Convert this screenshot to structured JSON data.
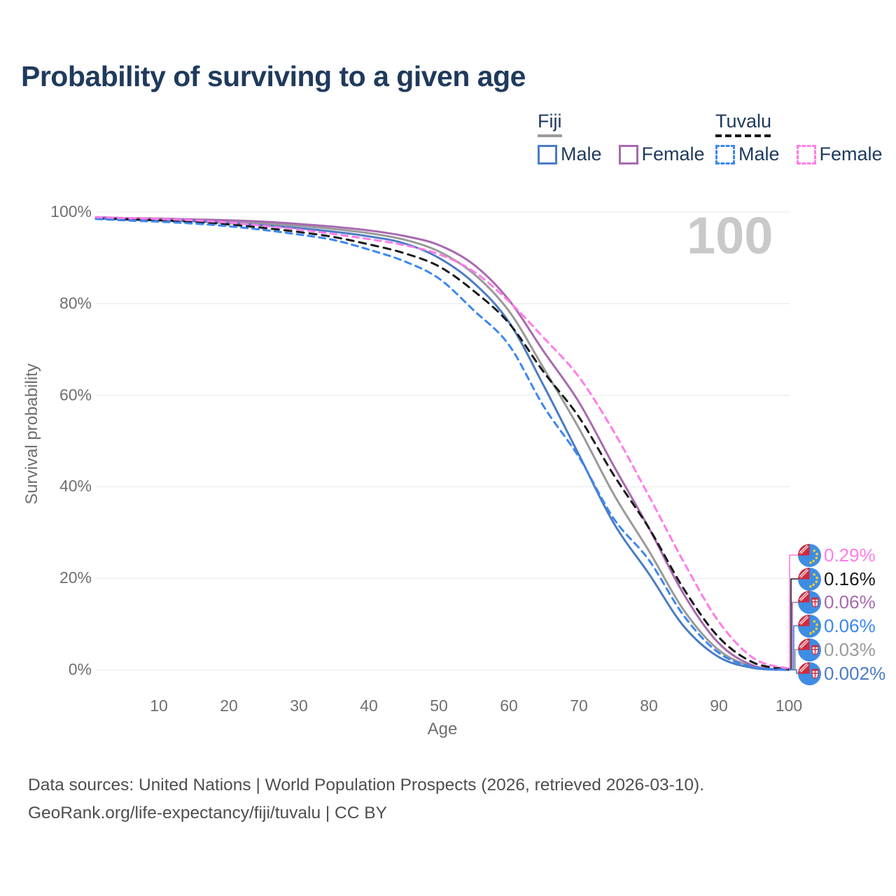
{
  "title": "Probability of surviving to a given age",
  "watermark": "100",
  "legend": {
    "fiji": {
      "label": "Fiji",
      "male": "Male",
      "female": "Female"
    },
    "tuvalu": {
      "label": "Tuvalu",
      "male": "Male",
      "female": "Female"
    }
  },
  "footer": {
    "line1": "Data sources: United Nations | World Population Prospects (2026, retrieved 2026-03-10).",
    "line2": "GeoRank.org/life-expectancy/fiji/tuvalu | CC BY"
  },
  "chart_data": {
    "type": "line",
    "title": "Probability of surviving to a given age",
    "xlabel": "Age",
    "ylabel": "Survival probability",
    "xlim": [
      1,
      100
    ],
    "ylim": [
      0,
      100
    ],
    "grid": "horizontal",
    "legend_position": "top-right",
    "x_ticks": [
      10,
      20,
      30,
      40,
      50,
      60,
      70,
      80,
      90,
      100
    ],
    "y_ticks": [
      {
        "value": 0,
        "label": "0%"
      },
      {
        "value": 20,
        "label": "20%"
      },
      {
        "value": 40,
        "label": "40%"
      },
      {
        "value": 60,
        "label": "60%"
      },
      {
        "value": 80,
        "label": "80%"
      },
      {
        "value": 100,
        "label": "100%"
      }
    ],
    "ages": [
      1,
      5,
      10,
      15,
      20,
      25,
      30,
      35,
      40,
      45,
      50,
      55,
      60,
      65,
      70,
      75,
      80,
      85,
      90,
      95,
      100
    ],
    "series": [
      {
        "id": "fiji_all",
        "name": "Fiji",
        "color": "#9a9a9a",
        "dash": "none",
        "values": [
          98.75,
          98.55,
          98.4,
          98.2,
          97.9,
          97.5,
          97.0,
          96.3,
          95.4,
          94.0,
          91.4,
          86.5,
          78.4,
          65.8,
          52.8,
          38.3,
          26.0,
          13.0,
          4.3,
          0.65,
          0.03
        ]
      },
      {
        "id": "fiji_female",
        "name": "Fiji Female",
        "color": "#a869b0",
        "dash": "none",
        "values": [
          98.9,
          98.7,
          98.6,
          98.4,
          98.2,
          97.9,
          97.4,
          96.8,
          96.0,
          94.8,
          92.8,
          88.5,
          80.8,
          69.5,
          58.5,
          44.5,
          31.0,
          16.5,
          5.8,
          0.9,
          0.06
        ]
      },
      {
        "id": "fiji_male",
        "name": "Fiji Male",
        "color": "#4b7cc4",
        "dash": "none",
        "values": [
          98.6,
          98.4,
          98.2,
          98.0,
          97.6,
          97.1,
          96.5,
          95.7,
          94.7,
          93.2,
          90.0,
          84.5,
          76.0,
          62.0,
          47.0,
          32.0,
          21.0,
          9.5,
          2.8,
          0.4,
          0.002
        ]
      },
      {
        "id": "tuvalu_all",
        "name": "Tuvalu",
        "color": "#1a1a1a",
        "dash": "10 8",
        "values": [
          98.7,
          98.45,
          98.2,
          97.85,
          97.3,
          96.55,
          95.65,
          94.55,
          92.95,
          91.05,
          88.15,
          82.75,
          75.75,
          65.0,
          55.25,
          42.5,
          31.0,
          17.65,
          7.1,
          1.55,
          0.16
        ]
      },
      {
        "id": "tuvalu_male",
        "name": "Tuvalu Male",
        "color": "#3c87ef",
        "dash": "9 7",
        "values": [
          98.5,
          98.2,
          97.9,
          97.5,
          96.9,
          96.1,
          95.1,
          93.9,
          91.8,
          89.3,
          85.5,
          78.5,
          71.0,
          57.5,
          46.5,
          33.0,
          24.0,
          11.8,
          3.7,
          0.6,
          0.06
        ]
      },
      {
        "id": "tuvalu_female",
        "name": "Tuvalu Female",
        "color": "#ff7ce8",
        "dash": "9 7",
        "values": [
          98.9,
          98.7,
          98.5,
          98.2,
          97.7,
          97.0,
          96.2,
          95.2,
          94.1,
          92.8,
          90.8,
          87.0,
          80.5,
          72.5,
          64.0,
          52.0,
          38.0,
          23.5,
          10.5,
          2.5,
          0.29
        ]
      }
    ],
    "end_labels": [
      {
        "text": "0.29%",
        "series": "tuvalu_female",
        "flag": "tuvalu"
      },
      {
        "text": "0.16%",
        "series": "tuvalu_all",
        "flag": "tuvalu"
      },
      {
        "text": "0.06%",
        "series": "fiji_female",
        "flag": "fiji"
      },
      {
        "text": "0.06%",
        "series": "tuvalu_male",
        "flag": "tuvalu"
      },
      {
        "text": "0.03%",
        "series": "fiji_all",
        "flag": "fiji"
      },
      {
        "text": "0.002%",
        "series": "fiji_male",
        "flag": "fiji"
      }
    ]
  }
}
